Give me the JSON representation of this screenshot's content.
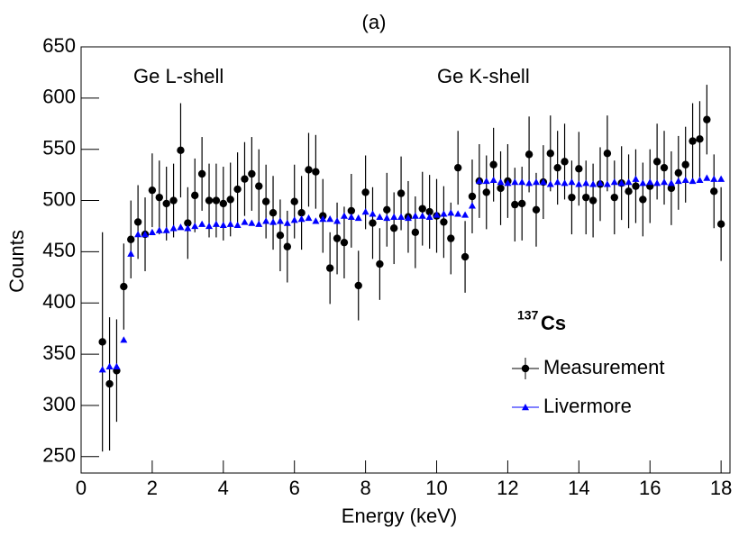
{
  "chart_data": {
    "type": "scatter",
    "title": "(a)",
    "xlabel": "Energy (keV)",
    "ylabel": "Counts",
    "annotations": [
      "Ge L-shell",
      "Ge K-shell"
    ],
    "legend_title": {
      "mass": "137",
      "element": "Cs"
    },
    "x": [
      0.6,
      0.8,
      1.0,
      1.2,
      1.4,
      1.6,
      1.8,
      2.0,
      2.2,
      2.4,
      2.6,
      2.8,
      3.0,
      3.2,
      3.4,
      3.6,
      3.8,
      4.0,
      4.2,
      4.4,
      4.6,
      4.8,
      5.0,
      5.2,
      5.4,
      5.6,
      5.8,
      6.0,
      6.2,
      6.4,
      6.6,
      6.8,
      7.0,
      7.2,
      7.4,
      7.6,
      7.8,
      8.0,
      8.2,
      8.4,
      8.6,
      8.8,
      9.0,
      9.2,
      9.4,
      9.6,
      9.8,
      10.0,
      10.2,
      10.4,
      10.6,
      10.8,
      11.0,
      11.2,
      11.4,
      11.6,
      11.8,
      12.0,
      12.2,
      12.4,
      12.6,
      12.8,
      13.0,
      13.2,
      13.4,
      13.6,
      13.8,
      14.0,
      14.2,
      14.4,
      14.6,
      14.8,
      15.0,
      15.2,
      15.4,
      15.6,
      15.8,
      16.0,
      16.2,
      16.4,
      16.6,
      16.8,
      17.0,
      17.2,
      17.4,
      17.6,
      17.8,
      18.0
    ],
    "series": [
      {
        "name": "Measurement",
        "color": "#000000",
        "marker": "circle",
        "values": [
          362,
          321,
          334,
          416,
          462,
          479,
          467,
          510,
          503,
          497,
          500,
          549,
          478,
          505,
          526,
          500,
          500,
          497,
          501,
          511,
          521,
          526,
          514,
          499,
          488,
          466,
          455,
          499,
          488,
          530,
          528,
          485,
          434,
          463,
          459,
          490,
          417,
          508,
          478,
          438,
          491,
          473,
          507,
          484,
          469,
          492,
          489,
          485,
          479,
          463,
          532,
          445,
          504,
          519,
          508,
          535,
          512,
          519,
          496,
          497,
          545,
          491,
          518,
          546,
          532,
          538,
          503,
          531,
          503,
          500,
          516,
          546,
          503,
          517,
          509,
          514,
          501,
          514,
          538,
          532,
          512,
          527,
          535,
          558,
          560,
          579,
          509,
          477
        ],
        "errors": [
          107,
          65,
          50,
          42,
          38,
          36,
          36,
          36,
          36,
          36,
          36,
          46,
          35,
          36,
          36,
          36,
          36,
          36,
          36,
          36,
          36,
          36,
          36,
          36,
          36,
          35,
          35,
          36,
          36,
          36,
          36,
          36,
          35,
          35,
          35,
          36,
          34,
          36,
          35,
          35,
          36,
          35,
          36,
          35,
          35,
          36,
          36,
          36,
          35,
          35,
          36,
          35,
          36,
          36,
          36,
          36,
          36,
          36,
          36,
          36,
          37,
          36,
          36,
          37,
          36,
          37,
          36,
          36,
          36,
          36,
          36,
          37,
          36,
          36,
          36,
          36,
          36,
          36,
          37,
          36,
          36,
          36,
          37,
          37,
          37,
          34,
          36,
          36
        ]
      },
      {
        "name": "Livermore",
        "color": "#0000ff",
        "marker": "triangle",
        "values": [
          335,
          338,
          338,
          364,
          448,
          467,
          467,
          469,
          471,
          471,
          473,
          474,
          473,
          475,
          477,
          475,
          477,
          476,
          477,
          476,
          479,
          478,
          477,
          480,
          479,
          480,
          478,
          481,
          482,
          483,
          480,
          482,
          482,
          480,
          485,
          484,
          483,
          489,
          487,
          484,
          483,
          484,
          484,
          483,
          485,
          485,
          484,
          486,
          487,
          488,
          487,
          486,
          495,
          519,
          519,
          520,
          518,
          517,
          518,
          518,
          517,
          518,
          518,
          516,
          518,
          517,
          518,
          516,
          517,
          516,
          517,
          516,
          518,
          517,
          518,
          521,
          517,
          518,
          517,
          518,
          517,
          519,
          520,
          519,
          520,
          522,
          521,
          521
        ]
      }
    ],
    "xlim": [
      0,
      18.25
    ],
    "ylim": [
      234,
      650
    ],
    "xticks": [
      0,
      2,
      4,
      6,
      8,
      10,
      12,
      14,
      16,
      18
    ],
    "yticks": [
      250,
      300,
      350,
      400,
      450,
      500,
      550,
      600,
      650
    ]
  }
}
